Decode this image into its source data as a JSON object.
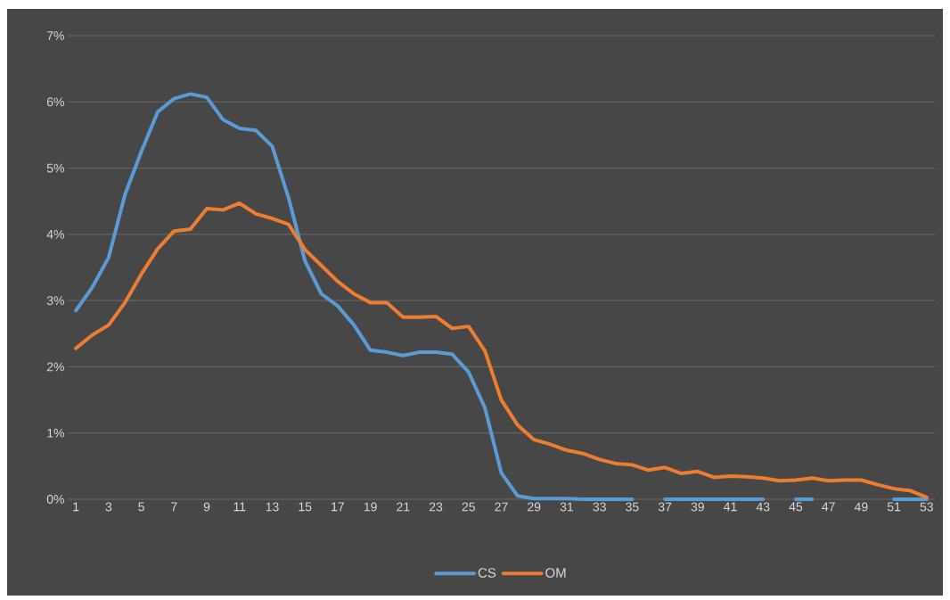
{
  "chart_data": {
    "type": "line",
    "categories": [
      "1",
      null,
      "3",
      null,
      "5",
      null,
      "7",
      null,
      "9",
      null,
      "11",
      null,
      "13",
      null,
      "15",
      null,
      "17",
      null,
      "19",
      null,
      "21",
      null,
      "23",
      null,
      "25",
      null,
      "27",
      null,
      "29",
      null,
      "31",
      null,
      "33",
      null,
      "35",
      null,
      "37",
      null,
      "39",
      null,
      "41",
      null,
      "43",
      null,
      "45",
      null,
      "47",
      null,
      "49",
      null,
      "51",
      null,
      "53"
    ],
    "series": [
      {
        "name": "CS",
        "color": "#5b9bd5",
        "values": [
          2.85,
          3.2,
          3.65,
          4.6,
          5.25,
          5.85,
          6.05,
          6.12,
          6.07,
          5.73,
          5.6,
          5.57,
          5.33,
          4.55,
          3.6,
          3.1,
          2.92,
          2.63,
          2.25,
          2.22,
          2.17,
          2.22,
          2.22,
          2.19,
          1.92,
          1.38,
          0.4,
          0.05,
          0.01,
          0.01,
          0.01,
          0,
          0,
          0,
          0,
          null,
          0,
          0,
          0,
          0,
          0,
          0,
          0,
          null,
          0,
          0,
          null,
          null,
          null,
          null,
          0,
          0,
          0
        ]
      },
      {
        "name": "OM",
        "color": "#ed7d31",
        "values": [
          2.28,
          2.48,
          2.63,
          2.97,
          3.4,
          3.78,
          4.05,
          4.08,
          4.39,
          4.37,
          4.47,
          4.31,
          4.24,
          4.15,
          3.77,
          3.53,
          3.29,
          3.1,
          2.97,
          2.97,
          2.75,
          2.75,
          2.76,
          2.58,
          2.61,
          2.24,
          1.5,
          1.12,
          0.9,
          0.83,
          0.74,
          0.69,
          0.6,
          0.54,
          0.52,
          0.44,
          0.48,
          0.39,
          0.42,
          0.33,
          0.35,
          0.34,
          0.32,
          0.28,
          0.29,
          0.32,
          0.28,
          0.29,
          0.29,
          0.22,
          0.16,
          0.13,
          0.03
        ]
      }
    ],
    "ylim": [
      0,
      7
    ],
    "yticks": [
      {
        "value": 0,
        "label": "0%"
      },
      {
        "value": 1,
        "label": "1%"
      },
      {
        "value": 2,
        "label": "2%"
      },
      {
        "value": 3,
        "label": "3%"
      },
      {
        "value": 4,
        "label": "4%"
      },
      {
        "value": 5,
        "label": "5%"
      },
      {
        "value": 6,
        "label": "6%"
      },
      {
        "value": 7,
        "label": "7%"
      }
    ],
    "grid": "y",
    "legend": "bottom",
    "marker": "none",
    "line_style": "solid"
  }
}
